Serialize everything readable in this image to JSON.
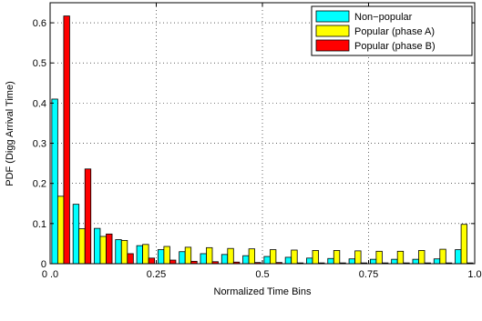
{
  "chart_data": {
    "type": "bar",
    "title": "",
    "xlabel": "Normalized Time Bins",
    "ylabel": "PDF (Digg Arrival Time)",
    "xlim": [
      0,
      1.0
    ],
    "ylim": [
      0,
      0.65
    ],
    "x_ticks": [
      0.0,
      0.25,
      0.5,
      0.75,
      1.0
    ],
    "x_tick_labels": [
      "0 .0",
      "0.25",
      "0.5",
      "0.75",
      "1.0"
    ],
    "y_ticks": [
      0,
      0.1,
      0.2,
      0.3,
      0.4,
      0.5,
      0.6
    ],
    "y_tick_labels": [
      "0",
      "0.1",
      "0.2",
      "0.3",
      "0.4",
      "0.5",
      "0.6"
    ],
    "grid": true,
    "legend_position": "top-right",
    "bins": 20,
    "series": [
      {
        "name": "Non−popular",
        "color": "#00ffff",
        "values": [
          0.41,
          0.148,
          0.088,
          0.06,
          0.045,
          0.035,
          0.03,
          0.025,
          0.023,
          0.02,
          0.018,
          0.016,
          0.014,
          0.013,
          0.012,
          0.011,
          0.011,
          0.011,
          0.012,
          0.035
        ]
      },
      {
        "name": "Popular (phase A)",
        "color": "#ffff00",
        "values": [
          0.168,
          0.087,
          0.068,
          0.058,
          0.048,
          0.043,
          0.041,
          0.04,
          0.038,
          0.037,
          0.035,
          0.034,
          0.033,
          0.033,
          0.032,
          0.031,
          0.031,
          0.033,
          0.036,
          0.098
        ]
      },
      {
        "name": "Popular (phase B)",
        "color": "#ff0000",
        "values": [
          0.617,
          0.236,
          0.074,
          0.025,
          0.014,
          0.009,
          0.006,
          0.005,
          0.004,
          0.003,
          0.003,
          0.002,
          0.002,
          0.002,
          0.002,
          0.002,
          0.002,
          0.002,
          0.002,
          0.002
        ]
      }
    ]
  }
}
